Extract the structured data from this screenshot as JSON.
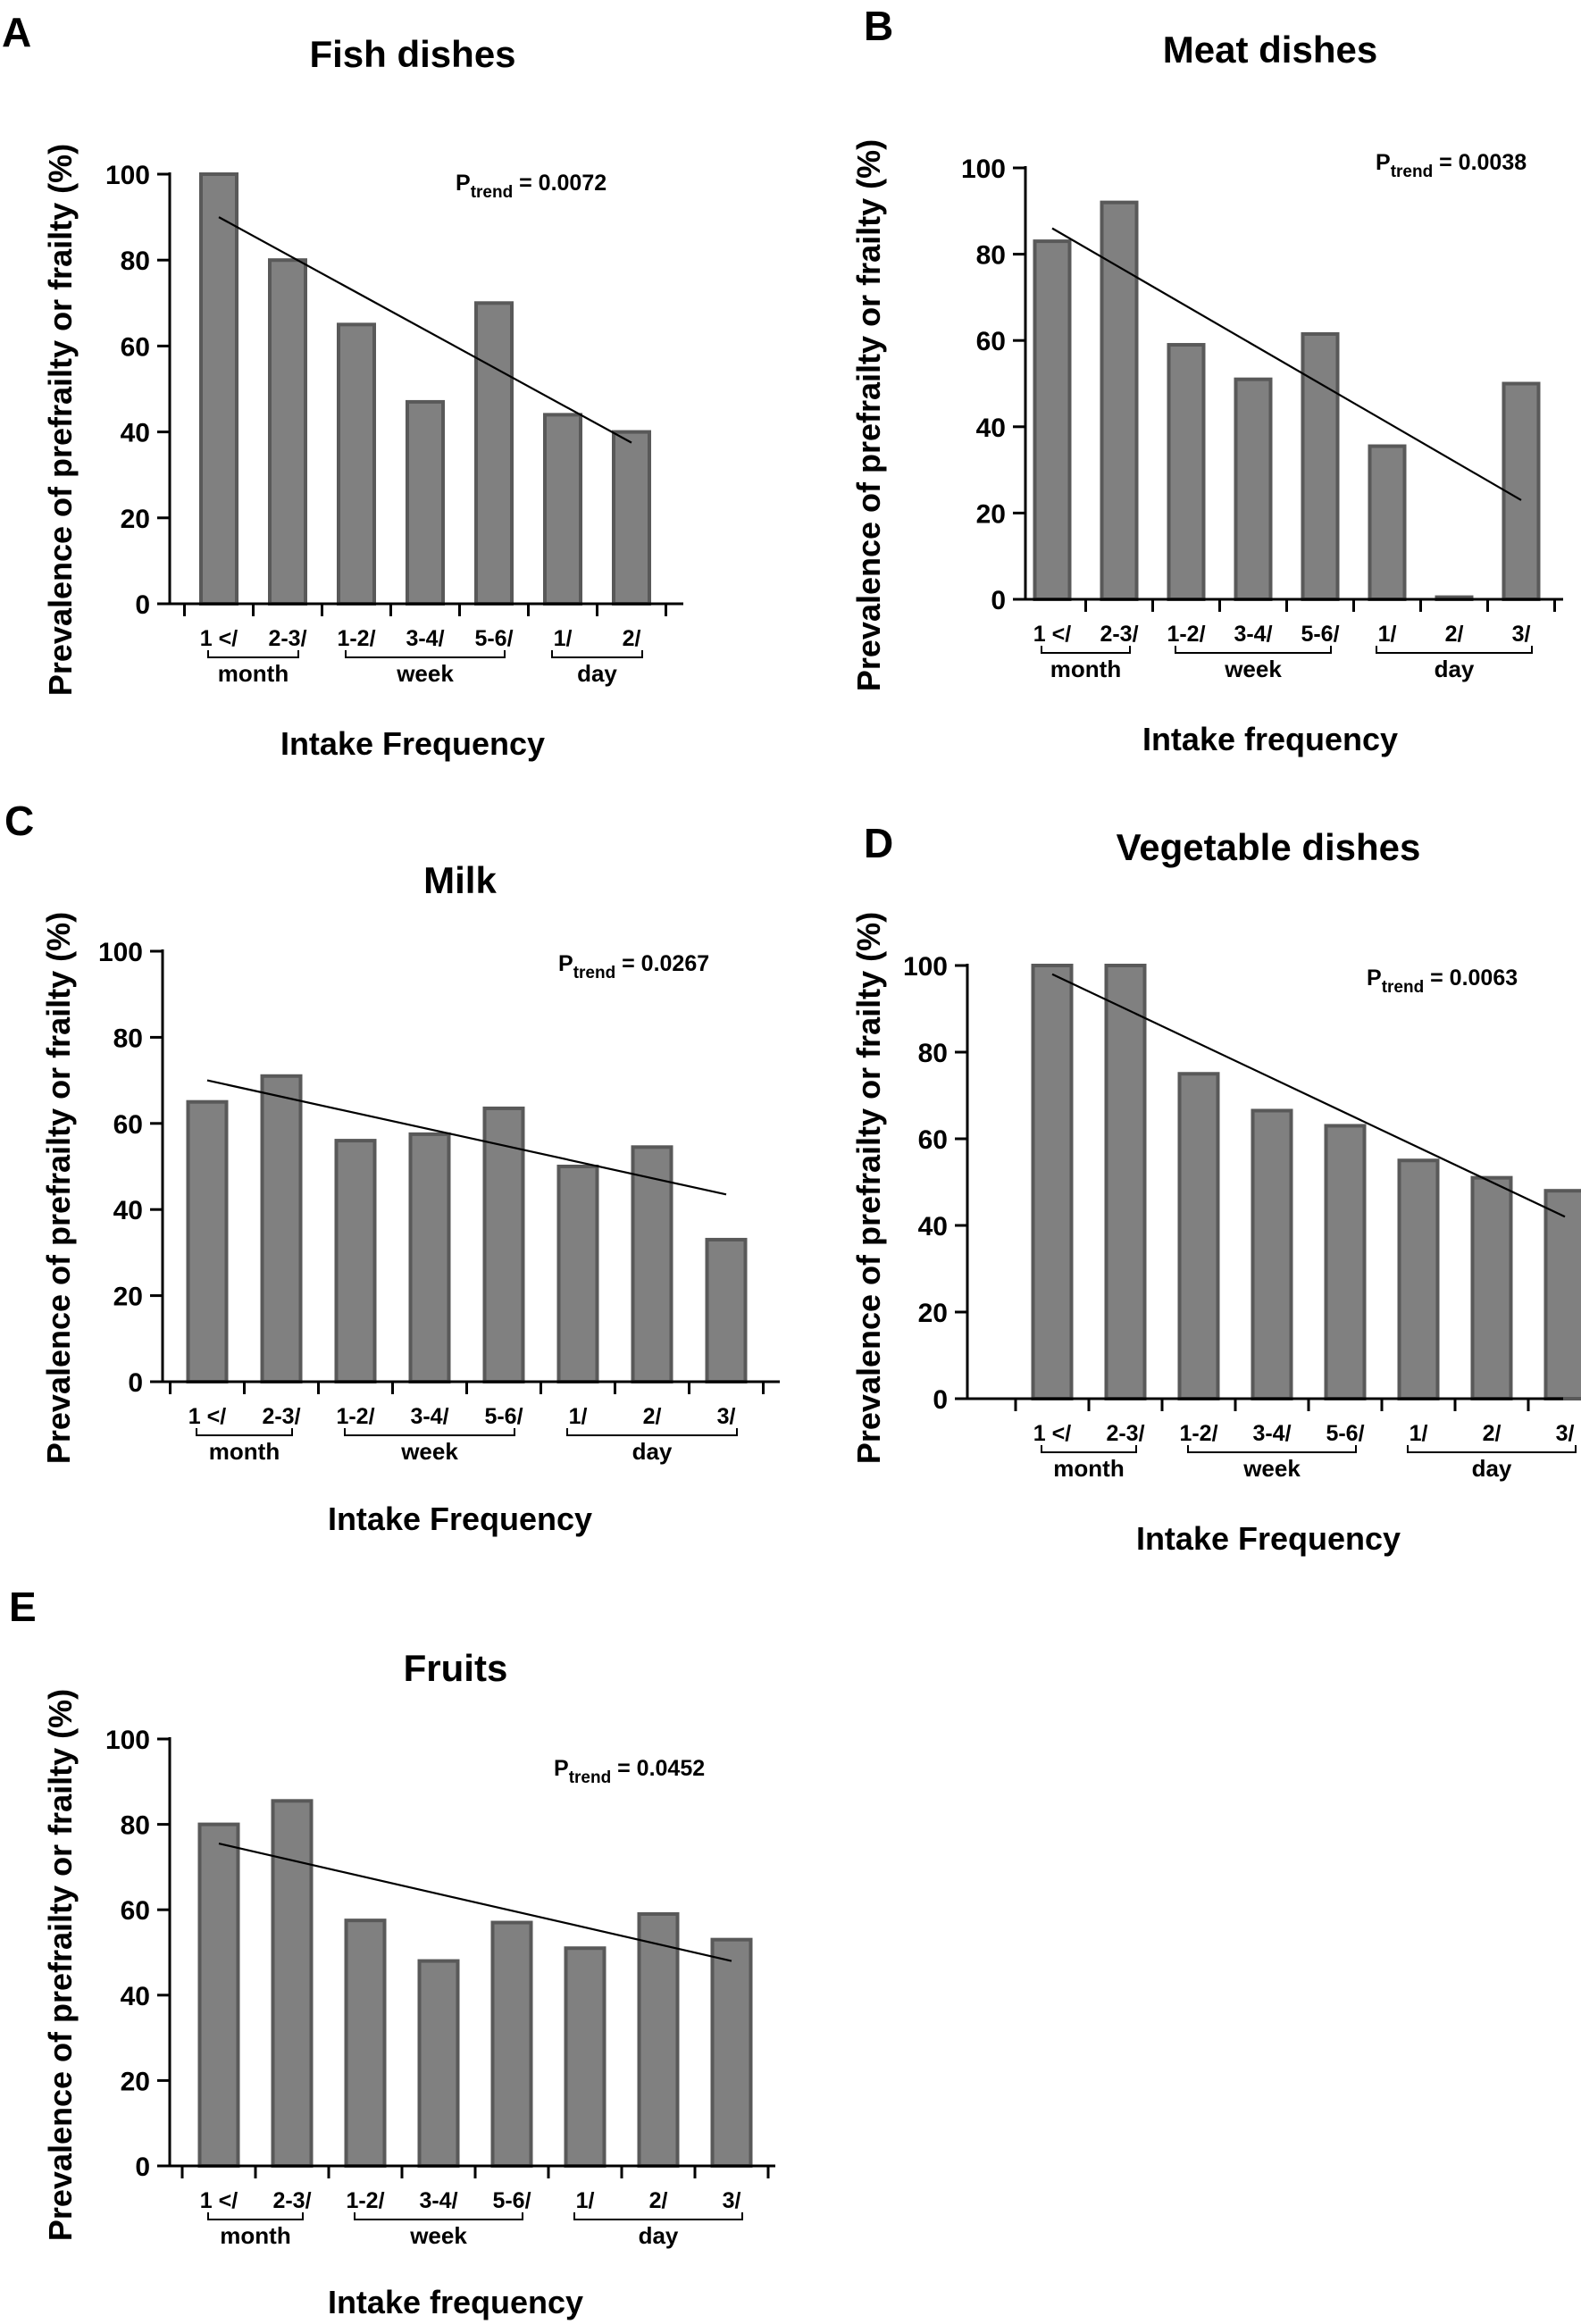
{
  "figure": {
    "panels": [
      {
        "letter": "A",
        "chart_data": {
          "type": "bar",
          "title": "Fish dishes",
          "xlabel": "Intake Frequency",
          "ylabel": "Prevalence of prefrailty or frailty (%)",
          "ylim": [
            0,
            100
          ],
          "yticks": [
            0,
            20,
            40,
            60,
            80,
            100
          ],
          "categories": [
            "1 </",
            "2-3/",
            "1-2/",
            "3-4/",
            "5-6/",
            "1/",
            "2/"
          ],
          "values": [
            100,
            80,
            65,
            47,
            70,
            44,
            40
          ],
          "groups": [
            {
              "label": "month",
              "from": 0,
              "to": 1
            },
            {
              "label": "week",
              "from": 2,
              "to": 4
            },
            {
              "label": "day",
              "from": 5,
              "to": 6
            }
          ],
          "trend": {
            "start": 90,
            "end": 37.5
          },
          "p_trend": {
            "prefix": "P",
            "subscript": "trend",
            "value": " = 0.0072"
          },
          "bar_color": "#808080",
          "bar_edge_color": "#595959"
        }
      },
      {
        "letter": "B",
        "chart_data": {
          "type": "bar",
          "title": "Meat dishes",
          "xlabel": "Intake frequency",
          "ylabel": "Prevalence of prefrailty or frailty (%)",
          "ylim": [
            0,
            100
          ],
          "yticks": [
            0,
            20,
            40,
            60,
            80,
            100
          ],
          "categories": [
            "1 </",
            "2-3/",
            "1-2/",
            "3-4/",
            "5-6/",
            "1/",
            "2/",
            "3/"
          ],
          "values": [
            83,
            92,
            59,
            51,
            61.5,
            35.5,
            0.5,
            50
          ],
          "groups": [
            {
              "label": "month",
              "from": 0,
              "to": 1
            },
            {
              "label": "week",
              "from": 2,
              "to": 4
            },
            {
              "label": "day",
              "from": 5,
              "to": 7
            }
          ],
          "trend": {
            "start": 86,
            "end": 23
          },
          "p_trend": {
            "prefix": "P",
            "subscript": "trend",
            "value": " = 0.0038"
          },
          "bar_color": "#808080",
          "bar_edge_color": "#595959"
        }
      },
      {
        "letter": "C",
        "chart_data": {
          "type": "bar",
          "title": "Milk",
          "xlabel": "Intake Frequency",
          "ylabel": "Prevalence of prefrailty or frailty (%)",
          "ylim": [
            0,
            100
          ],
          "yticks": [
            0,
            20,
            40,
            60,
            80,
            100
          ],
          "categories": [
            "1 </",
            "2-3/",
            "1-2/",
            "3-4/",
            "5-6/",
            "1/",
            "2/",
            "3/"
          ],
          "values": [
            65,
            71,
            56,
            57.5,
            63.5,
            50,
            54.5,
            33
          ],
          "groups": [
            {
              "label": "month",
              "from": 0,
              "to": 1
            },
            {
              "label": "week",
              "from": 2,
              "to": 4
            },
            {
              "label": "day",
              "from": 5,
              "to": 7
            }
          ],
          "trend": {
            "start": 70,
            "end": 43.5
          },
          "p_trend": {
            "prefix": "P",
            "subscript": "trend",
            "value": " = 0.0267"
          },
          "bar_color": "#808080",
          "bar_edge_color": "#595959"
        }
      },
      {
        "letter": "D",
        "chart_data": {
          "type": "bar",
          "title": "Vegetable dishes",
          "xlabel": "Intake Frequency",
          "ylabel": "Prevalence of prefrailty or frailty (%)",
          "ylim": [
            0,
            100
          ],
          "yticks": [
            0,
            20,
            40,
            60,
            80,
            100
          ],
          "categories": [
            "1 </",
            "2-3/",
            "1-2/",
            "3-4/",
            "5-6/",
            "1/",
            "2/",
            "3/"
          ],
          "values": [
            100,
            100,
            75,
            66.5,
            63,
            55,
            51,
            48
          ],
          "groups": [
            {
              "label": "month",
              "from": 0,
              "to": 1
            },
            {
              "label": "week",
              "from": 2,
              "to": 4
            },
            {
              "label": "day",
              "from": 5,
              "to": 7
            }
          ],
          "trend": {
            "start": 98,
            "end": 42
          },
          "p_trend": {
            "prefix": "P",
            "subscript": "trend",
            "value": " = 0.0063"
          },
          "bar_color": "#808080",
          "bar_edge_color": "#595959"
        }
      },
      {
        "letter": "E",
        "chart_data": {
          "type": "bar",
          "title": "Fruits",
          "xlabel": "Intake frequency",
          "ylabel": "Prevalence of prefrailty or frailty (%)",
          "ylim": [
            0,
            100
          ],
          "yticks": [
            0,
            20,
            40,
            60,
            80,
            100
          ],
          "categories": [
            "1 </",
            "2-3/",
            "1-2/",
            "3-4/",
            "5-6/",
            "1/",
            "2/",
            "3/"
          ],
          "values": [
            80,
            85.5,
            57.5,
            48,
            57,
            51,
            59,
            53
          ],
          "groups": [
            {
              "label": "month",
              "from": 0,
              "to": 1
            },
            {
              "label": "week",
              "from": 2,
              "to": 4
            },
            {
              "label": "day",
              "from": 5,
              "to": 7
            }
          ],
          "trend": {
            "start": 75.5,
            "end": 48
          },
          "p_trend": {
            "prefix": "P",
            "subscript": "trend",
            "value": " = 0.0452"
          },
          "bar_color": "#808080",
          "bar_edge_color": "#595959"
        }
      }
    ]
  }
}
